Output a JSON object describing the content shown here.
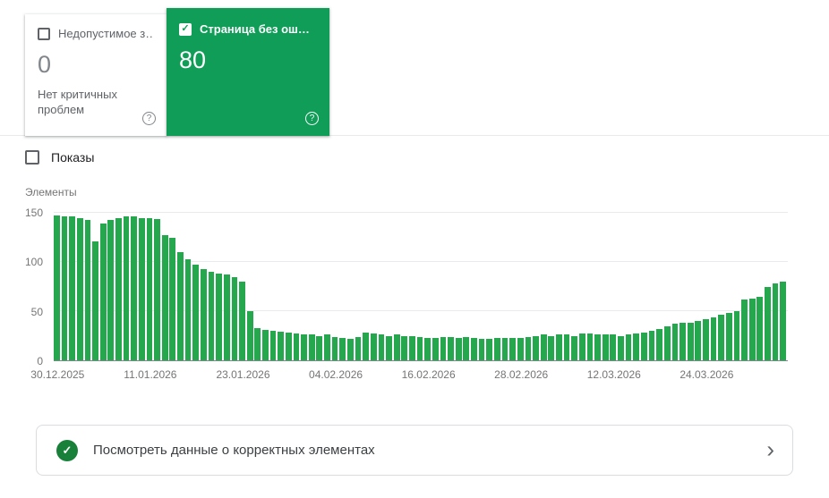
{
  "cards": {
    "error": {
      "title": "Недопустимое з…",
      "value": "0",
      "subtitle": "Нет критичных проблем",
      "checked": false
    },
    "valid": {
      "title": "Страница без ош…",
      "value": "80",
      "checked": true
    }
  },
  "impressions_label": "Показы",
  "chart_data": {
    "type": "bar",
    "title": "",
    "ylabel": "Элементы",
    "xlabel": "",
    "ylim": [
      0,
      150
    ],
    "yticks": [
      0,
      50,
      100,
      150
    ],
    "grid": true,
    "x_tick_labels": [
      "30.12.2025",
      "11.01.2026",
      "23.01.2026",
      "04.02.2026",
      "16.02.2026",
      "28.02.2026",
      "12.03.2026",
      "24.03.2026"
    ],
    "x_tick_indices": [
      0,
      12,
      24,
      36,
      48,
      60,
      72,
      84
    ],
    "values": [
      147,
      146,
      146,
      145,
      143,
      121,
      139,
      143,
      145,
      146,
      146,
      145,
      145,
      144,
      127,
      125,
      110,
      103,
      97,
      93,
      90,
      88,
      87,
      85,
      80,
      50,
      33,
      31,
      30,
      29,
      28,
      27,
      26,
      26,
      25,
      26,
      24,
      23,
      22,
      24,
      28,
      27,
      26,
      25,
      26,
      25,
      25,
      24,
      23,
      23,
      24,
      24,
      23,
      24,
      23,
      22,
      22,
      23,
      23,
      23,
      23,
      24,
      25,
      26,
      25,
      26,
      26,
      25,
      27,
      27,
      26,
      26,
      26,
      25,
      26,
      27,
      28,
      30,
      32,
      35,
      37,
      38,
      38,
      40,
      42,
      44,
      46,
      48,
      50,
      62,
      63,
      65,
      75,
      78,
      80
    ]
  },
  "bottom_card": {
    "label": "Посмотреть данные о корректных элементах"
  },
  "icons": {
    "help": "?",
    "check": "✓",
    "chevron": "›"
  },
  "colors": {
    "card_green": "#0f9d58",
    "bar_green": "#25a84d",
    "check_circle_green": "#188038"
  }
}
